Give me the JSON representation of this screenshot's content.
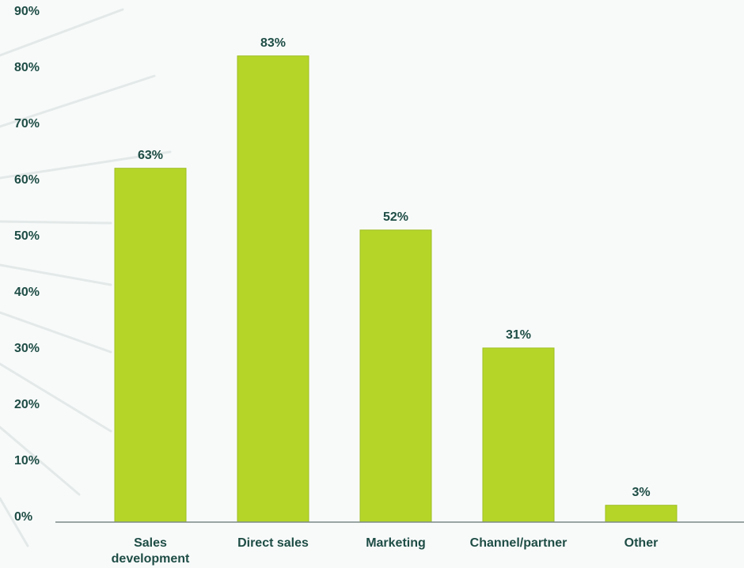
{
  "chart_data": {
    "type": "bar",
    "categories": [
      "Sales development",
      "Direct sales",
      "Marketing",
      "Channel/partner",
      "Other"
    ],
    "values": [
      63,
      83,
      52,
      31,
      3
    ],
    "value_labels": [
      "63%",
      "83%",
      "52%",
      "31%",
      "3%"
    ],
    "color": "#b5d628",
    "ylim": [
      0,
      90
    ],
    "yticks": [
      {
        "value": 0,
        "label": "0%"
      },
      {
        "value": 10,
        "label": "10%"
      },
      {
        "value": 20,
        "label": "20%"
      },
      {
        "value": 30,
        "label": "30%"
      },
      {
        "value": 40,
        "label": "40%"
      },
      {
        "value": 50,
        "label": "50%"
      },
      {
        "value": 60,
        "label": "60%"
      },
      {
        "value": 70,
        "label": "70%"
      },
      {
        "value": 80,
        "label": "80%"
      },
      {
        "value": 90,
        "label": "90%"
      }
    ],
    "grid": false
  }
}
